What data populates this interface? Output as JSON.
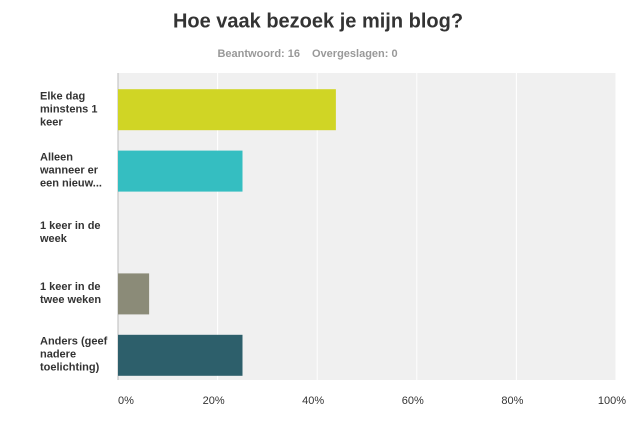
{
  "chart_data": {
    "type": "barh",
    "title": "Hoe vaak bezoek je mijn blog?",
    "subtitle": [
      "Beantwoord: 16",
      "Overgeslagen: 0"
    ],
    "categories": [
      "Elke dag minstens 1 keer",
      "Alleen wanneer er een nieuw...",
      "1 keer in de week",
      "1 keer in de twee weken",
      "Anders (geef nadere toelichting)"
    ],
    "values": [
      43.75,
      25,
      0,
      6.25,
      25
    ],
    "colors": [
      "#d0d525",
      "#35bec1",
      "#8b8b78",
      "#8b8b78",
      "#2d5f6b"
    ],
    "xlim": [
      0,
      100
    ],
    "xticks": [
      {
        "value": 0,
        "label": "0%"
      },
      {
        "value": 20,
        "label": "20%"
      },
      {
        "value": 40,
        "label": "40%"
      },
      {
        "value": 60,
        "label": "60%"
      },
      {
        "value": 80,
        "label": "80%"
      },
      {
        "value": 100,
        "label": "100%"
      }
    ],
    "grid": true
  }
}
